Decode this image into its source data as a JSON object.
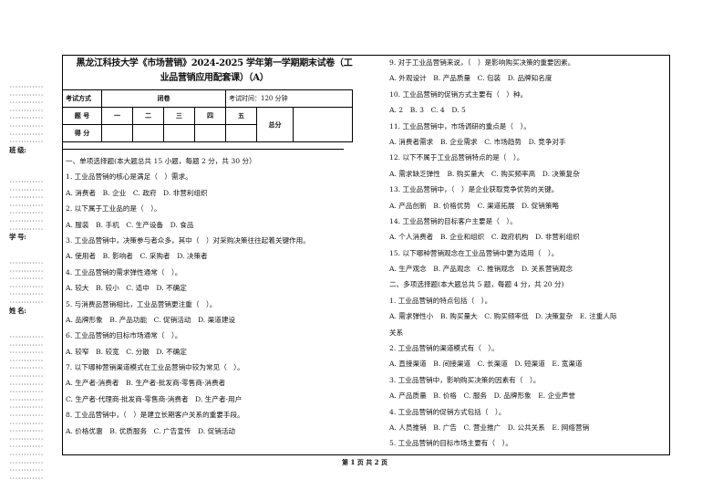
{
  "margin": {
    "dots": "············",
    "class_label": "班 级:",
    "id_label": "学 号:",
    "name_label": "姓 名:"
  },
  "header": {
    "title_line1": "黑龙江科技大学《市场营销》2024-2025 学年第一学期期末试卷（工",
    "title_line2": "业品营销应用配套课）（A）"
  },
  "info_table": {
    "exam_mode_label": "考试方式",
    "exam_mode": "闭卷",
    "exam_time": "考试时间：120 分钟",
    "question_no_label": "题 号",
    "columns": [
      "一",
      "二",
      "三",
      "四",
      "五"
    ],
    "total_label": "总分",
    "score_label": "得 分"
  },
  "left_lines": [
    "一、单项选择题(本大题总共 15 小题，每题 2 分，共 30 分）",
    "1. 工业品营销的核心是满足（　）需求。",
    "A. 消费者　B. 企业　C. 政府　D. 非营利组织",
    "2. 以下属于工业品的是（　）。",
    "A. 服装　B. 手机　C. 生产设备　D. 食品",
    "3. 工业品营销中，决策参与者众多，其中（　）对采购决策往往起着关键作用。",
    "A. 使用者　B. 影响者　C. 采购者　D. 决策者",
    "4. 工业品营销的需求弹性通常（　）。",
    "A. 较大　B. 较小　C. 适中　D. 不确定",
    "5. 与消费品营销相比，工业品营销更注重（　）。",
    "A. 品牌形象　B. 产品功能　C. 促销活动　D. 渠道建设",
    "6. 工业品营销的目标市场通常（　）。",
    "A. 较窄　B. 较宽　C. 分散　D. 不确定",
    "7. 以下哪种营销渠道模式在工业品营销中较为常见（　）。",
    "A. 生产者-消费者　B. 生产者-批发商-零售商-消费者",
    "C. 生产者-代理商-批发商-零售商-消费者　D. 生产者-用户",
    "8. 工业品营销中，（　）是建立长期客户关系的重要手段。",
    "A. 价格优惠　B. 优质服务　C. 广告宣传　D. 促销活动"
  ],
  "right_lines": [
    "9. 对于工业品营销来说，（　）是影响购买决策的重要因素。",
    "A. 外观设计　B. 产品质量　C. 包装　D. 品牌知名度",
    "10. 工业品营销的促销方式主要有（　）种。",
    "A. 2　B. 3　C. 4　D. 5",
    "11. 工业品营销中，市场调研的重点是（　）。",
    "A. 消费者需求　B. 企业需求　C. 市场趋势　D. 竞争对手",
    "12. 以下不属于工业品营销特点的是（　）。",
    "A. 需求缺乏弹性　B. 购买量大　C. 购买频率高　D. 决策复杂",
    "13. 工业品营销中，（　）是企业获取竞争优势的关键。",
    "A. 产品创新　B. 价格优势　C. 渠道拓展　D. 促销策略",
    "14. 工业品营销的目标客户主要是（　）。",
    "A. 个人消费者　B. 企业和组织　C. 政府机构　D. 非营利组织",
    "15. 以下哪种营销观念在工业品营销中更为适用（　）。",
    "A. 生产观念　B. 产品观念　C. 推销观念　D. 关系营销观念",
    "二、多项选择题(本大题总共 5 题，每题 4 分，共 20 分)",
    "1. 工业品营销的特点包括（　）。",
    "A. 需求弹性小　B. 购买量大　C. 购买频率低　D. 决策复杂　E. 注重人际",
    "关系",
    "2. 工业品营销的渠道模式有（　）。",
    "A. 直接渠道　B. 间接渠道　C. 长渠道　D. 短渠道　E. 宽渠道",
    "3. 工业品营销中，影响购买决策的因素有（　）。",
    "A. 产品质量　B. 价格　C. 服务　D. 品牌形象　E. 企业声誉",
    "4. 工业品营销的促销方式包括（　）。",
    "A. 人员推销　B. 广告　C. 营业推广　D. 公共关系　E. 网络营销",
    "5. 工业品营销的目标市场主要有（　）。"
  ],
  "footer": {
    "page": "第 1 页 共 2 页"
  }
}
